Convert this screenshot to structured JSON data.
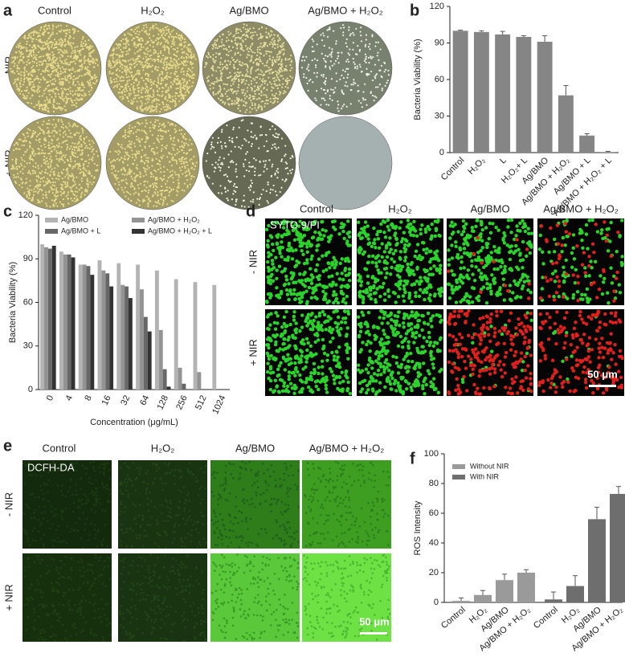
{
  "panels": {
    "a": {
      "label": "a",
      "columns": [
        "Control",
        "H₂O₂",
        "Ag/BMO",
        "Ag/BMO + H₂O₂"
      ],
      "rows": [
        "- NIR",
        "+ NIR"
      ]
    },
    "d": {
      "label": "d",
      "columns": [
        "Control",
        "H₂O₂",
        "Ag/BMO",
        "Ag/BMO + H₂O₂"
      ],
      "rows": [
        "- NIR",
        "+ NIR"
      ],
      "stain": "SYTO 9/PI",
      "scale_bar": "50 μm"
    },
    "e": {
      "label": "e",
      "columns": [
        "Control",
        "H₂O₂",
        "Ag/BMO",
        "Ag/BMO + H₂O₂"
      ],
      "rows": [
        "- NIR",
        "+ NIR"
      ],
      "stain": "DCFH-DA",
      "scale_bar": "50 μm"
    }
  },
  "chart_data": [
    {
      "type": "bar",
      "panel_label": "b",
      "y_label": "Bacteria Viability (%)",
      "categories": [
        "Control",
        "H₂O₂",
        "L",
        "H₂O₂+ L",
        "Ag/BMO",
        "Ag/BMO + H₂O₂",
        "Ag/BMO + L",
        "Ag/BMO + H₂O₂ + L"
      ],
      "values": [
        100,
        99,
        97,
        95,
        91,
        47,
        14,
        0.5
      ],
      "errors": [
        0.5,
        1,
        2.5,
        1,
        5,
        8,
        1.5,
        0.5
      ],
      "color": "#858585",
      "ylim": [
        0,
        120
      ],
      "yticks": [
        0,
        30,
        60,
        90,
        120
      ]
    },
    {
      "type": "grouped_bar",
      "panel_label": "c",
      "y_label": "Bacteria Viability (%)",
      "x_label": "Concentration (μg/mL)",
      "categories": [
        "0",
        "4",
        "8",
        "16",
        "32",
        "64",
        "128",
        "256",
        "512",
        "1024"
      ],
      "series": [
        {
          "name": "Ag/BMO",
          "color": "#b3b3b3",
          "values": [
            100,
            95,
            86,
            89,
            87,
            86,
            82,
            76,
            74,
            72
          ]
        },
        {
          "name": "Ag/BMO + H₂O₂",
          "color": "#939393",
          "values": [
            98,
            93,
            86,
            82,
            72,
            69,
            41,
            15,
            12,
            0
          ]
        },
        {
          "name": "Ag/BMO + L",
          "color": "#676767",
          "values": [
            97,
            93,
            85,
            80,
            71,
            50,
            14,
            4,
            0,
            0
          ]
        },
        {
          "name": "Ag/BMO + H₂O₂ + L",
          "color": "#333333",
          "values": [
            99,
            91,
            79,
            71,
            63,
            40,
            2,
            0,
            0,
            0
          ]
        }
      ],
      "ylim": [
        0,
        120
      ],
      "yticks": [
        0,
        30,
        60,
        90,
        120
      ]
    },
    {
      "type": "panel_bar",
      "panel_label": "f",
      "y_label": "ROS Intensity",
      "categories": [
        "Control",
        "H₂O₂",
        "Ag/BMO",
        "Ag/BMO + H₂O₂"
      ],
      "series": [
        {
          "name": "Without NIR",
          "color": "#9a9a9a",
          "values": [
            1,
            5,
            15,
            20
          ],
          "errors": [
            2,
            3,
            4,
            2
          ]
        },
        {
          "name": "With NIR",
          "color": "#6e6e6e",
          "values": [
            2,
            11,
            56,
            73
          ],
          "errors": [
            5,
            7,
            8,
            5
          ]
        }
      ],
      "ylim": [
        0,
        100
      ],
      "yticks": [
        0,
        20,
        40,
        60,
        80,
        100
      ]
    }
  ]
}
